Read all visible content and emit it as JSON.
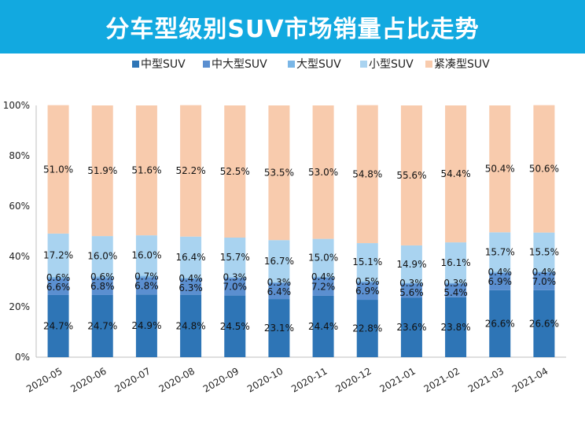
{
  "header": {
    "title": "分车型级别SUV市场销量占比走势"
  },
  "chart_data": {
    "type": "bar",
    "stacked": true,
    "title": "分车型级别SUV市场销量占比走势",
    "categories": [
      "2020-05",
      "2020-06",
      "2020-07",
      "2020-08",
      "2020-09",
      "2020-10",
      "2020-11",
      "2020-12",
      "2021-01",
      "2021-02",
      "2021-03",
      "2021-04"
    ],
    "ylim": [
      0,
      100
    ],
    "yticks": [
      "0%",
      "20%",
      "40%",
      "60%",
      "80%",
      "100%"
    ],
    "grid": false,
    "legend_position": "top",
    "series": [
      {
        "name": "中型SUV",
        "color": "#2e75b6",
        "values": [
          24.7,
          24.7,
          24.9,
          24.8,
          24.5,
          23.1,
          24.4,
          22.8,
          23.6,
          23.8,
          26.6,
          26.6
        ],
        "labels": [
          "24.7%",
          "24.7%",
          "24.9%",
          "24.8%",
          "24.5%",
          "23.1%",
          "24.4%",
          "22.8%",
          "23.6%",
          "23.8%",
          "26.6%",
          "26.6%"
        ]
      },
      {
        "name": "中大型SUV",
        "color": "#5b8fd0",
        "values": [
          6.6,
          6.8,
          6.8,
          6.3,
          7.0,
          6.4,
          7.2,
          6.9,
          5.6,
          5.4,
          6.9,
          7.0
        ],
        "labels": [
          "6.6%",
          "6.8%",
          "6.8%",
          "6.3%",
          "7.0%",
          "6.4%",
          "7.2%",
          "6.9%",
          "5.6%",
          "5.4%",
          "6.9%",
          "7.0%"
        ]
      },
      {
        "name": "大型SUV",
        "color": "#7ab6e6",
        "values": [
          0.6,
          0.6,
          0.7,
          0.4,
          0.3,
          0.3,
          0.4,
          0.5,
          0.3,
          0.3,
          0.4,
          0.4
        ],
        "labels": [
          "0.6%",
          "0.6%",
          "0.7%",
          "0.4%",
          "0.3%",
          "0.3%",
          "0.4%",
          "0.5%",
          "0.3%",
          "0.3%",
          "0.4%",
          "0.4%"
        ]
      },
      {
        "name": "小型SUV",
        "color": "#a9d3f0",
        "values": [
          17.2,
          16.0,
          16.0,
          16.4,
          15.7,
          16.7,
          15.0,
          15.1,
          14.9,
          16.1,
          15.7,
          15.5
        ],
        "labels": [
          "17.2%",
          "16.0%",
          "16.0%",
          "16.4%",
          "15.7%",
          "16.7%",
          "15.0%",
          "15.1%",
          "14.9%",
          "16.1%",
          "15.7%",
          "15.5%"
        ]
      },
      {
        "name": "紧凑型SUV",
        "color": "#f8cbad",
        "values": [
          51.0,
          51.9,
          51.6,
          52.2,
          52.5,
          53.5,
          53.0,
          54.8,
          55.6,
          54.4,
          50.4,
          50.6
        ],
        "labels": [
          "51.0%",
          "51.9%",
          "51.6%",
          "52.2%",
          "52.5%",
          "53.5%",
          "53.0%",
          "54.8%",
          "55.6%",
          "54.4%",
          "50.4%",
          "50.6%"
        ]
      }
    ]
  }
}
